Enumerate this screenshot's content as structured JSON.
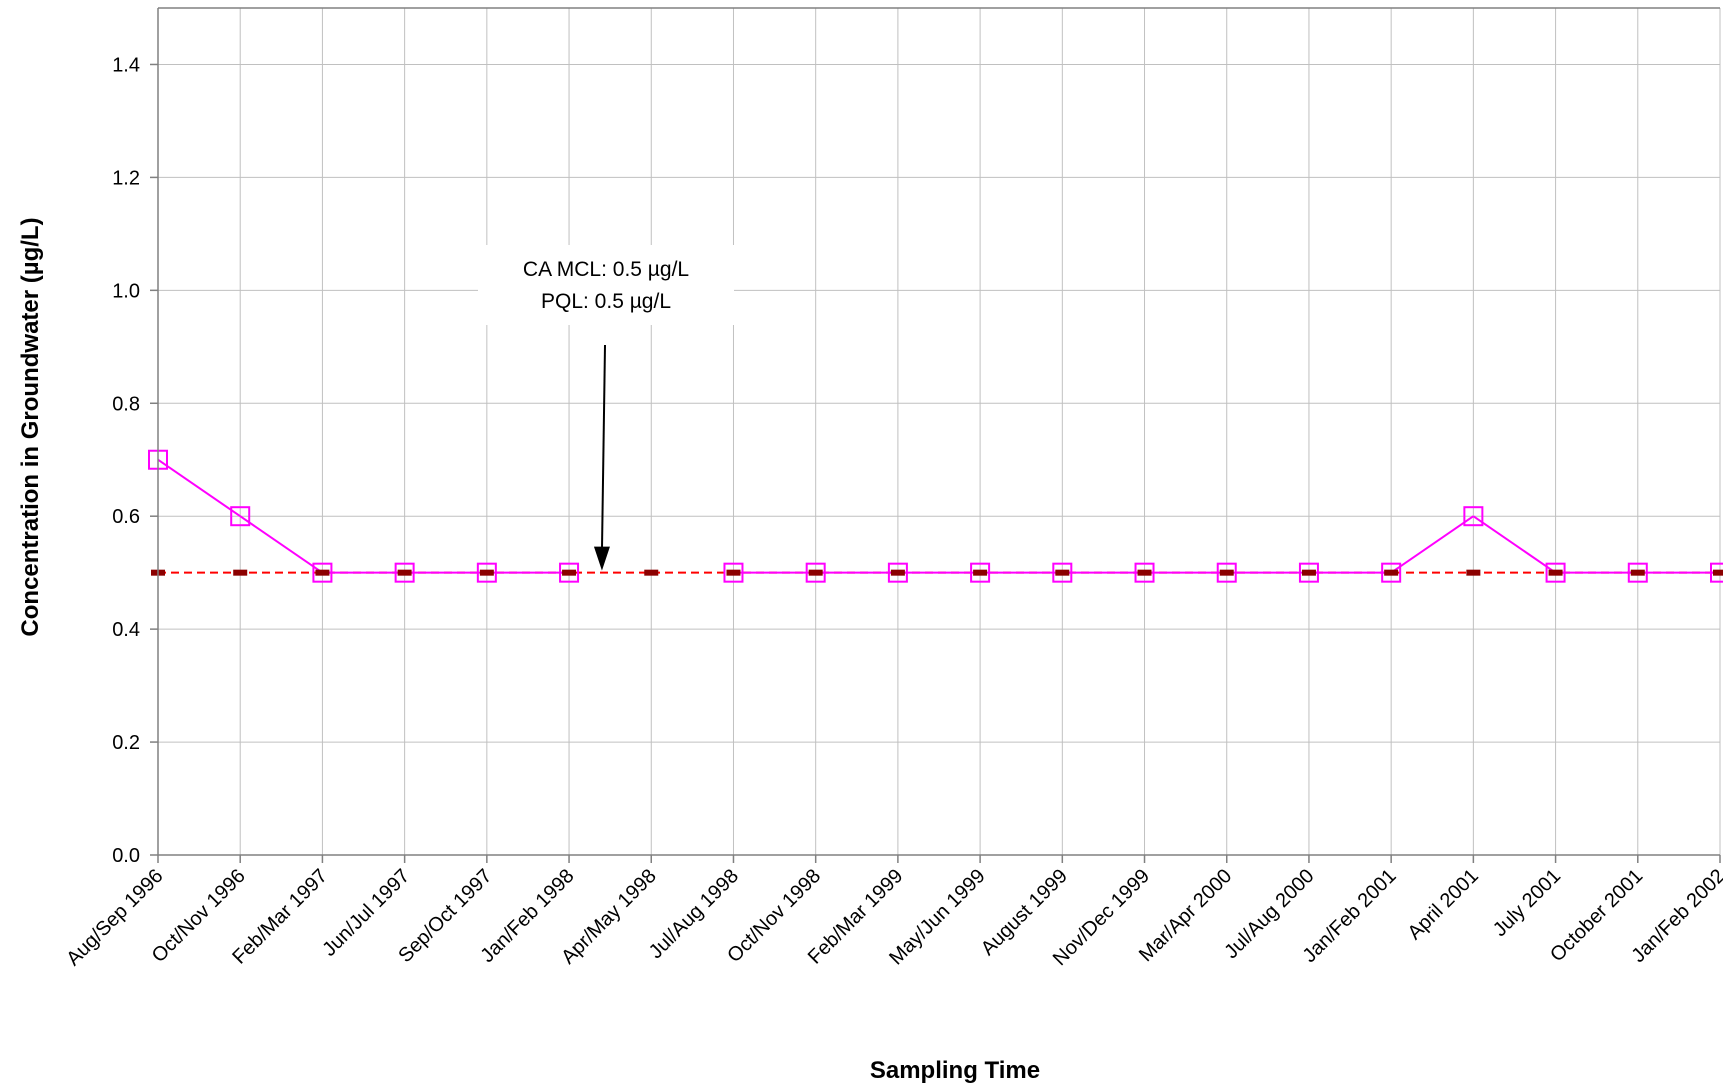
{
  "chart_data": {
    "type": "line",
    "title": "",
    "xlabel": "Sampling Time",
    "ylabel": "Concentration in Groundwater (µg/L)",
    "ylim": [
      0,
      1.5
    ],
    "yticks": [
      0.0,
      0.2,
      0.4,
      0.6,
      0.8,
      1.0,
      1.2,
      1.4
    ],
    "ytick_labels": [
      "0.0",
      "0.2",
      "0.4",
      "0.6",
      "0.8",
      "1.0",
      "1.2",
      "1.4"
    ],
    "grid": true,
    "categories": [
      "Aug/Sep 1996",
      "Oct/Nov 1996",
      "Feb/Mar 1997",
      "Jun/Jul 1997",
      "Sep/Oct 1997",
      "Jan/Feb 1998",
      "Apr/May 1998",
      "Jul/Aug 1998",
      "Oct/Nov 1998",
      "Feb/Mar 1999",
      "May/Jun 1999",
      "August 1999",
      "Nov/Dec 1999",
      "Mar/Apr 2000",
      "Jul/Aug 2000",
      "Jan/Feb 2001",
      "April 2001",
      "July  2001",
      "October 2001",
      "Jan/Feb 2002"
    ],
    "series": [
      {
        "marker": "open-square",
        "color": "#ff00ff",
        "values": [
          0.7,
          0.6,
          0.5,
          0.5,
          0.5,
          0.5,
          null,
          0.5,
          0.5,
          0.5,
          0.5,
          0.5,
          0.5,
          0.5,
          0.5,
          0.5,
          0.6,
          0.5,
          0.5,
          0.5
        ]
      },
      {
        "marker": "dash",
        "color": "#8b0000",
        "values": [
          0.5,
          0.5,
          0.5,
          0.5,
          0.5,
          0.5,
          0.5,
          0.5,
          0.5,
          0.5,
          0.5,
          0.5,
          0.5,
          0.5,
          0.5,
          0.5,
          0.5,
          0.5,
          0.5,
          0.5
        ]
      },
      {
        "line_style": "dashed",
        "color": "#ff0000",
        "values": [
          0.5,
          0.5,
          0.5,
          0.5,
          0.5,
          0.5,
          0.5,
          0.5,
          0.5,
          0.5,
          0.5,
          0.5,
          0.5,
          0.5,
          0.5,
          0.5,
          0.5,
          0.5,
          0.5,
          0.5
        ]
      }
    ],
    "annotation": {
      "lines": [
        "CA MCL: 0.5 µg/L",
        "PQL: 0.5 µg/L"
      ],
      "arrow_target": {
        "category_index": 5.4,
        "y": 0.5
      }
    }
  }
}
